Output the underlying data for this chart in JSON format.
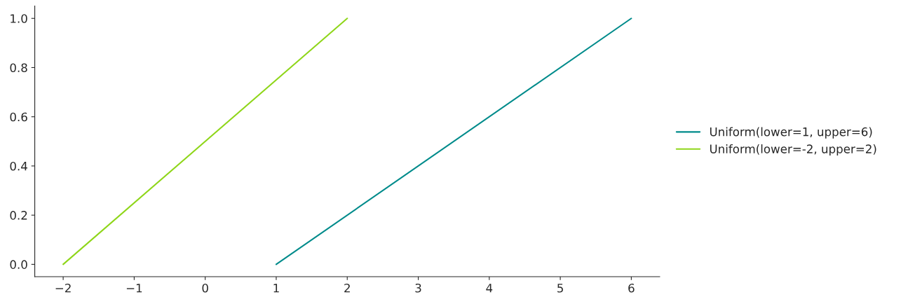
{
  "chart_data": {
    "type": "line",
    "series": [
      {
        "name": "Uniform(lower=1, upper=6)",
        "color": "#008b8b",
        "x": [
          1,
          6
        ],
        "values": [
          0,
          1
        ]
      },
      {
        "name": "Uniform(lower=-2, upper=2)",
        "color": "#8fd61a",
        "x": [
          -2,
          2
        ],
        "values": [
          0,
          1
        ]
      }
    ],
    "xlim": [
      -2.4,
      6.4
    ],
    "xticks": [
      {
        "value": -2,
        "label": "−2"
      },
      {
        "value": -1,
        "label": "−1"
      },
      0,
      1,
      2,
      3,
      4,
      5,
      6
    ],
    "ylim": [
      -0.05,
      1.05
    ],
    "yticks": [
      {
        "value": 0,
        "label": "0.0"
      },
      {
        "value": 0.2,
        "label": "0.2"
      },
      {
        "value": 0.4,
        "label": "0.4"
      },
      {
        "value": 0.6,
        "label": "0.6"
      },
      {
        "value": 0.8,
        "label": "0.8"
      },
      {
        "value": 1,
        "label": "1.0"
      }
    ],
    "grid": false,
    "legend": "right"
  }
}
